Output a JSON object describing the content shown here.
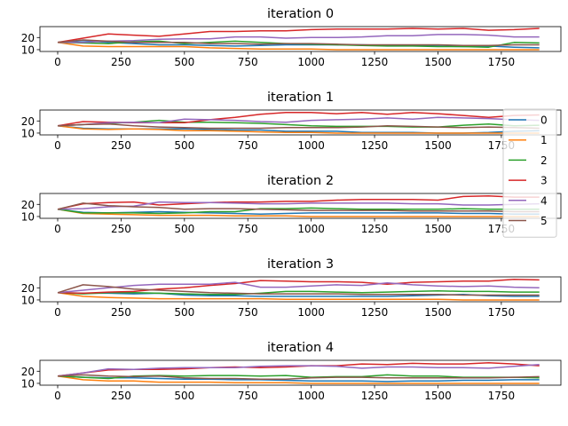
{
  "chart_data": [
    {
      "type": "line",
      "title": "iteration 0",
      "xlim": [
        -70,
        1985
      ],
      "ylim": [
        8.5,
        29
      ],
      "xticks": [
        0,
        250,
        500,
        750,
        1000,
        1250,
        1500,
        1750
      ],
      "yticks": [
        10,
        20
      ],
      "x": [
        0,
        100,
        200,
        300,
        400,
        500,
        600,
        700,
        800,
        900,
        1000,
        1100,
        1200,
        1300,
        1400,
        1500,
        1600,
        1700,
        1800,
        1900
      ],
      "series": [
        {
          "name": "0",
          "values": [
            16,
            17.5,
            16,
            15,
            14,
            14,
            13.5,
            13,
            13.5,
            14,
            14,
            14,
            14,
            13.5,
            13.5,
            13,
            12.5,
            13,
            12,
            11.5
          ]
        },
        {
          "name": "1",
          "values": [
            16,
            13,
            12.5,
            12.5,
            12.5,
            12.5,
            11.5,
            11,
            10.5,
            10.5,
            10.5,
            10,
            10,
            10,
            10,
            10,
            10,
            10,
            10,
            10
          ]
        },
        {
          "name": "2",
          "values": [
            16,
            15.5,
            15,
            16.5,
            17,
            15,
            16,
            17,
            16,
            15,
            14.5,
            14,
            13.5,
            13,
            13,
            12.5,
            12.5,
            12,
            16,
            15.5
          ]
        },
        {
          "name": "3",
          "values": [
            16,
            19.5,
            23,
            22,
            21,
            23,
            25,
            25,
            25.5,
            25.5,
            26.5,
            27,
            27,
            27,
            27.5,
            27,
            27.5,
            26,
            26.5,
            27.5
          ]
        },
        {
          "name": "4",
          "values": [
            16,
            16,
            17,
            17.5,
            18.5,
            19,
            19,
            20.5,
            20.5,
            19.5,
            20,
            20,
            20.5,
            21.5,
            21.5,
            22.5,
            22.5,
            22,
            20.5,
            20.5
          ]
        },
        {
          "name": "5",
          "values": [
            16,
            18,
            17,
            16,
            16,
            16,
            15,
            15,
            14.5,
            15,
            15,
            14.5,
            14,
            14,
            14,
            14,
            13.5,
            13.5,
            14,
            14
          ]
        }
      ]
    },
    {
      "type": "line",
      "title": "iteration 1",
      "xlim": [
        -70,
        1985
      ],
      "ylim": [
        8.5,
        29
      ],
      "xticks": [
        0,
        250,
        500,
        750,
        1000,
        1250,
        1500,
        1750
      ],
      "yticks": [
        10,
        20
      ],
      "x": [
        0,
        100,
        200,
        300,
        400,
        500,
        600,
        700,
        800,
        900,
        1000,
        1100,
        1200,
        1300,
        1400,
        1500,
        1600,
        1700,
        1800,
        1900
      ],
      "series": [
        {
          "name": "0",
          "values": [
            16,
            14,
            13.5,
            13.5,
            13.5,
            13.5,
            13,
            12.5,
            12.5,
            11.5,
            11.5,
            11.5,
            10.5,
            10.5,
            10.5,
            10,
            10,
            10.5,
            11.5,
            12
          ]
        },
        {
          "name": "1",
          "values": [
            16,
            13.5,
            13,
            13.5,
            13,
            12,
            12,
            11.5,
            11,
            10.5,
            10.5,
            10,
            10,
            10,
            10,
            10,
            10,
            10,
            10,
            10
          ]
        },
        {
          "name": "2",
          "values": [
            16,
            17,
            18,
            19,
            20.5,
            19,
            19,
            18.5,
            18,
            17,
            16,
            15.5,
            15.5,
            15.5,
            15,
            15,
            16.5,
            17.5,
            16,
            16.5
          ]
        },
        {
          "name": "3",
          "values": [
            16,
            19.5,
            19,
            18.5,
            18.5,
            18.5,
            21,
            23,
            25.5,
            27,
            27,
            26,
            27,
            25.5,
            27,
            26,
            24.5,
            23,
            24.5,
            25
          ]
        },
        {
          "name": "4",
          "values": [
            16,
            17,
            18.5,
            19,
            18.5,
            21.5,
            21,
            20.5,
            19.5,
            19,
            20.5,
            21,
            21.5,
            22.5,
            21.5,
            23,
            22.5,
            22,
            21,
            20.5
          ]
        },
        {
          "name": "5",
          "values": [
            16,
            17,
            17.5,
            16,
            15,
            14.5,
            14,
            14,
            14,
            14.5,
            14.5,
            14.5,
            15,
            16,
            15.5,
            15,
            14.5,
            15,
            14.5,
            14
          ]
        }
      ]
    },
    {
      "type": "line",
      "title": "iteration 2",
      "xlim": [
        -70,
        1985
      ],
      "ylim": [
        8.5,
        29
      ],
      "xticks": [
        0,
        250,
        500,
        750,
        1000,
        1250,
        1500,
        1750
      ],
      "yticks": [
        10,
        20
      ],
      "x": [
        0,
        100,
        200,
        300,
        400,
        500,
        600,
        700,
        800,
        900,
        1000,
        1100,
        1200,
        1300,
        1400,
        1500,
        1600,
        1700,
        1800,
        1900
      ],
      "series": [
        {
          "name": "0",
          "values": [
            16,
            13.5,
            13,
            13.5,
            14,
            13.5,
            13,
            12.5,
            12,
            12.5,
            13,
            13,
            13,
            13,
            13,
            13,
            12.5,
            12.5,
            12,
            12
          ]
        },
        {
          "name": "1",
          "values": [
            16,
            12.5,
            12,
            11.5,
            11,
            11,
            11,
            10.5,
            10.5,
            10.5,
            10,
            10,
            10,
            10,
            10,
            10,
            10,
            10,
            10,
            10
          ]
        },
        {
          "name": "2",
          "values": [
            16,
            13,
            13,
            13,
            12.5,
            13,
            14,
            14,
            16.5,
            16.5,
            17,
            16.5,
            16,
            16,
            16,
            16,
            16.5,
            16,
            16,
            16
          ]
        },
        {
          "name": "3",
          "values": [
            16,
            20.5,
            21.5,
            22,
            19.5,
            20.5,
            21.5,
            22,
            22,
            22.5,
            22.5,
            23.5,
            24,
            24,
            24,
            23.5,
            26.5,
            27,
            26,
            26
          ]
        },
        {
          "name": "4",
          "values": [
            16,
            16.5,
            18,
            18.5,
            22,
            21.5,
            21.5,
            21,
            20.5,
            20.5,
            21,
            21,
            21,
            21,
            20.5,
            20.5,
            19.5,
            19.5,
            20,
            20.5
          ]
        },
        {
          "name": "5",
          "values": [
            16,
            21,
            19,
            18,
            17.5,
            16,
            16.5,
            16.5,
            16,
            15.5,
            15,
            15,
            15,
            15,
            14.5,
            14.5,
            14.5,
            14.5,
            14,
            14
          ]
        }
      ]
    },
    {
      "type": "line",
      "title": "iteration 3",
      "xlim": [
        -70,
        1985
      ],
      "ylim": [
        8.5,
        29
      ],
      "xticks": [
        0,
        250,
        500,
        750,
        1000,
        1250,
        1500,
        1750
      ],
      "yticks": [
        10,
        20
      ],
      "x": [
        0,
        100,
        200,
        300,
        400,
        500,
        600,
        700,
        800,
        900,
        1000,
        1100,
        1200,
        1300,
        1400,
        1500,
        1600,
        1700,
        1800,
        1900
      ],
      "series": [
        {
          "name": "0",
          "values": [
            16,
            15.5,
            15.5,
            15,
            15.5,
            14,
            13.5,
            13.5,
            13,
            13,
            13,
            13,
            13,
            13,
            13.5,
            14,
            14.5,
            13.5,
            13,
            13
          ]
        },
        {
          "name": "1",
          "values": [
            16,
            13,
            12,
            11.5,
            11,
            11,
            11,
            11,
            11,
            10.5,
            10.5,
            10.5,
            10.5,
            10.5,
            10.5,
            10.5,
            10,
            10,
            10,
            10
          ]
        },
        {
          "name": "2",
          "values": [
            16,
            15,
            16,
            16,
            15.5,
            15,
            14.5,
            14.5,
            15.5,
            17,
            17,
            16.5,
            16,
            16.5,
            17,
            17.5,
            17,
            17,
            16.5,
            16.5
          ]
        },
        {
          "name": "3",
          "values": [
            16,
            15.5,
            16.5,
            17,
            19,
            20,
            22,
            23.5,
            26,
            25.5,
            25,
            25,
            24.5,
            23,
            24.5,
            25,
            25.5,
            25.5,
            27,
            26.5
          ]
        },
        {
          "name": "4",
          "values": [
            16,
            18,
            20,
            22,
            23,
            23,
            23,
            24.5,
            20.5,
            20.5,
            21.5,
            22.5,
            22,
            24,
            22.5,
            21.5,
            21,
            21.5,
            20.5,
            20
          ]
        },
        {
          "name": "5",
          "values": [
            16,
            22.5,
            21,
            19,
            18,
            17,
            16,
            15.5,
            15,
            15,
            15,
            15,
            14.5,
            14.5,
            14.5,
            14.5,
            14,
            14,
            14,
            14
          ]
        }
      ]
    },
    {
      "type": "line",
      "title": "iteration 4",
      "xlim": [
        -70,
        1985
      ],
      "ylim": [
        8.5,
        29
      ],
      "xticks": [
        0,
        250,
        500,
        750,
        1000,
        1250,
        1500,
        1750
      ],
      "yticks": [
        10,
        20
      ],
      "x": [
        0,
        100,
        200,
        300,
        400,
        500,
        600,
        700,
        800,
        900,
        1000,
        1100,
        1200,
        1300,
        1400,
        1500,
        1600,
        1700,
        1800,
        1900
      ],
      "series": [
        {
          "name": "0",
          "values": [
            16,
            15,
            14.5,
            14.5,
            14,
            13.5,
            13.5,
            13,
            13,
            12.5,
            12,
            12,
            12,
            11.5,
            12,
            12,
            12.5,
            12.5,
            13,
            13
          ]
        },
        {
          "name": "1",
          "values": [
            16,
            13,
            12,
            12,
            11,
            11,
            11,
            10.5,
            10.5,
            10.5,
            10,
            10,
            10,
            10,
            10,
            10,
            10,
            10,
            10,
            10
          ]
        },
        {
          "name": "2",
          "values": [
            16,
            15,
            14,
            16,
            16.5,
            16,
            16.5,
            16.5,
            16,
            16.5,
            15,
            15.5,
            15.5,
            17,
            16,
            16,
            15,
            15,
            15,
            14.5
          ]
        },
        {
          "name": "3",
          "values": [
            16,
            18.5,
            21,
            21.5,
            21.5,
            22,
            23,
            23.5,
            23,
            23.5,
            24.5,
            24.5,
            26,
            25.5,
            26.5,
            26,
            26,
            27,
            26,
            24.5
          ]
        },
        {
          "name": "4",
          "values": [
            16,
            18.5,
            22,
            21.5,
            22.5,
            23,
            23,
            23,
            24,
            24.5,
            24.5,
            24,
            22.5,
            23.5,
            23.5,
            23,
            23,
            22.5,
            24,
            25.5
          ]
        },
        {
          "name": "5",
          "values": [
            16,
            17,
            16,
            15.5,
            16,
            14.5,
            14,
            14,
            13.5,
            13.5,
            14.5,
            15,
            15,
            14.5,
            14.5,
            14.5,
            14.5,
            14.5,
            15,
            15.5
          ]
        }
      ]
    }
  ],
  "legend": {
    "placement": "right, overlapping iteration 1 and 2",
    "entries": [
      "0",
      "1",
      "2",
      "3",
      "4",
      "5"
    ]
  },
  "colors": [
    "#1f77b4",
    "#ff7f0e",
    "#2ca02c",
    "#d62728",
    "#9467bd",
    "#8c564b"
  ]
}
